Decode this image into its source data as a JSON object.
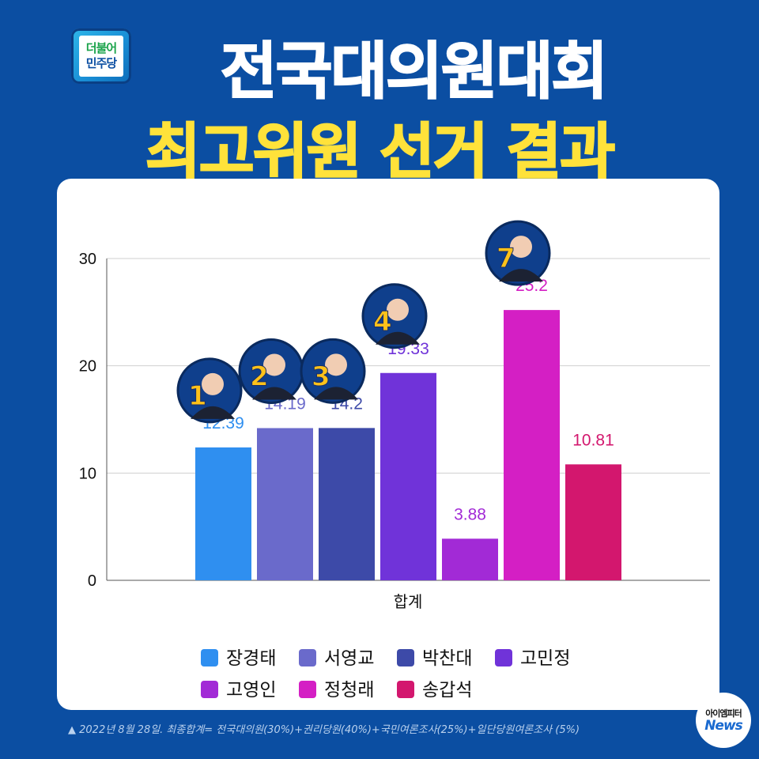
{
  "logo": {
    "line1": "더불어",
    "line2": "민주당"
  },
  "title_line1": "전국대의원대회",
  "title_line2": "최고위원 선거 결과",
  "footnote": "▲ 2022년 8월 28일. 최종합계= 전국대의원(30%)+권리당원(40%)+국민여론조사(25%)+일단당원여론조사 (5%)",
  "badge": {
    "line1": "아이엠피터",
    "line2": "News"
  },
  "chart_data": {
    "type": "bar",
    "categories": [
      "합계"
    ],
    "ylim": [
      0,
      30
    ],
    "yticks": [
      0,
      10,
      20,
      30
    ],
    "grid": true,
    "legend_position": "bottom",
    "series": [
      {
        "name": "장경태",
        "values": [
          12.39
        ],
        "color": "#2f8ff0",
        "badge_number": "1"
      },
      {
        "name": "서영교",
        "values": [
          14.19
        ],
        "color": "#6a6acb",
        "badge_number": "2"
      },
      {
        "name": "박찬대",
        "values": [
          14.2
        ],
        "color": "#3d4aa8",
        "badge_number": "3"
      },
      {
        "name": "고민정",
        "values": [
          19.33
        ],
        "color": "#7033d9",
        "badge_number": "4"
      },
      {
        "name": "고영인",
        "values": [
          3.88
        ],
        "color": "#a22ad6",
        "badge_number": ""
      },
      {
        "name": "정청래",
        "values": [
          25.2
        ],
        "color": "#d41fc4",
        "badge_number": "7"
      },
      {
        "name": "송갑석",
        "values": [
          10.81
        ],
        "color": "#d3176e",
        "badge_number": ""
      }
    ],
    "value_labels": [
      "12.39",
      "14.19",
      "14.2",
      "19.33",
      "3.88",
      "25.2",
      "10.81"
    ]
  }
}
